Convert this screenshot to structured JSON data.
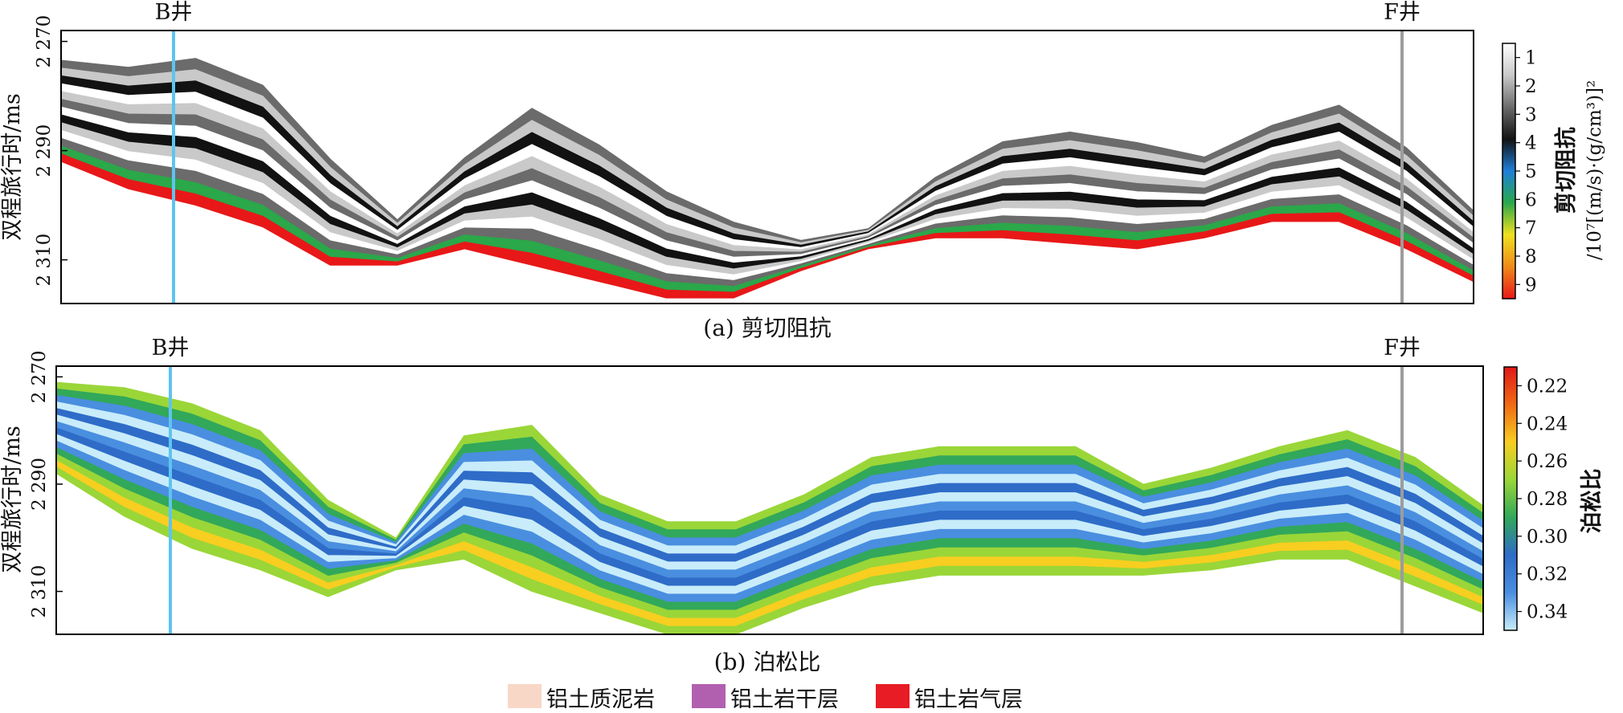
{
  "wells": [
    "B井",
    "F井"
  ],
  "colors": {
    "well_B": "#5ec4ef",
    "well_F": "#9c9c9c",
    "frame": "#000000"
  },
  "chart_data": [
    {
      "type": "heatmap",
      "caption": "(a) 剪切阻抗",
      "ylabel": "双程旅行时/ms",
      "y_ticks": [
        "2 270",
        "2 290",
        "2 310"
      ],
      "y_tick_values": [
        2270,
        2290,
        2310
      ],
      "ylim": [
        2268,
        2318
      ],
      "colorbar": {
        "title": "剪切阻抗",
        "unit": "/10⁷[(m/s)·(g/cm³)]²",
        "ticks": [
          "1",
          "2",
          "3",
          "4",
          "5",
          "6",
          "7",
          "8",
          "9"
        ],
        "range": [
          0.5,
          9.5
        ],
        "colors": [
          "#ffffff",
          "#c9c9c9",
          "#6b6b6b",
          "#121212",
          "#1e7fd8",
          "#2aa84a",
          "#f0e020",
          "#f08a1a",
          "#e81818"
        ]
      },
      "series": [
        {
          "name": "top_horizon_ms",
          "values": [
            2272,
            2273,
            2271,
            2276,
            2290,
            2302,
            2290,
            2280,
            2287,
            2296,
            2302,
            2306,
            2304,
            2294,
            2287,
            2285,
            2287,
            2290,
            2284,
            2280,
            2288,
            2300
          ]
        },
        {
          "name": "base_horizon_ms",
          "values": [
            2292,
            2297,
            2300,
            2304,
            2311,
            2311,
            2308,
            2311,
            2314,
            2317,
            2317,
            2312,
            2308,
            2306,
            2306,
            2307,
            2308,
            2306,
            2303,
            2303,
            2308,
            2314
          ]
        }
      ]
    },
    {
      "type": "heatmap",
      "caption": "(b) 泊松比",
      "ylabel": "双程旅行时/ms",
      "y_ticks": [
        "2 270",
        "2 290",
        "2 310"
      ],
      "y_tick_values": [
        2270,
        2290,
        2310
      ],
      "ylim": [
        2268,
        2318
      ],
      "colorbar": {
        "title": "泊松比",
        "ticks": [
          "0.22",
          "0.24",
          "0.26",
          "0.28",
          "0.30",
          "0.32",
          "0.34"
        ],
        "range": [
          0.21,
          0.35
        ],
        "colors": [
          "#e01818",
          "#f06a14",
          "#f8ce20",
          "#9ad638",
          "#32a85a",
          "#2e6cc8",
          "#4a8ee0",
          "#c8ecfa"
        ]
      },
      "series": [
        {
          "name": "top_horizon_ms",
          "values": [
            2271,
            2272,
            2275,
            2280,
            2293,
            2300,
            2281,
            2279,
            2292,
            2297,
            2297,
            2292,
            2285,
            2283,
            2283,
            2283,
            2290,
            2287,
            2283,
            2280,
            2285,
            2294
          ]
        },
        {
          "name": "base_horizon_ms",
          "values": [
            2288,
            2296,
            2302,
            2306,
            2311,
            2306,
            2304,
            2310,
            2314,
            2318,
            2318,
            2313,
            2309,
            2307,
            2307,
            2307,
            2307,
            2306,
            2304,
            2304,
            2309,
            2314
          ]
        }
      ]
    }
  ],
  "legend": {
    "items": [
      {
        "label": "铝土质泥岩",
        "color": "#f8d7c7"
      },
      {
        "label": "铝土岩干层",
        "color": "#b160b0"
      },
      {
        "label": "铝土岩气层",
        "color": "#e71c24"
      }
    ]
  }
}
